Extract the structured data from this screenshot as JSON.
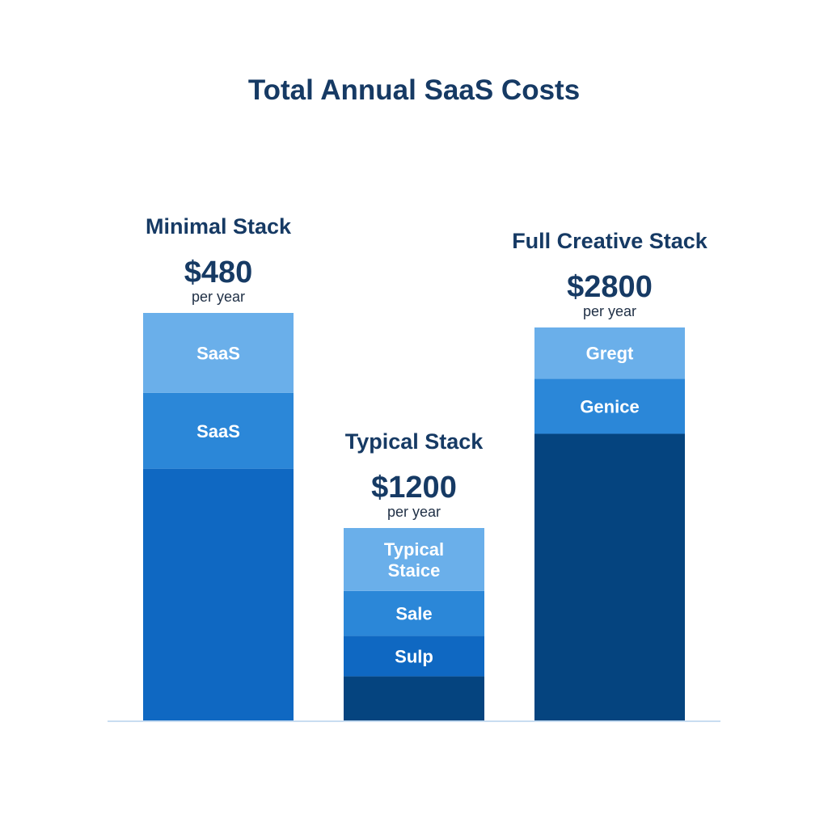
{
  "chart_data": {
    "type": "bar",
    "stacked": true,
    "title": "Total Annual SaaS Costs",
    "unit_label": "per year",
    "grid": false,
    "legend": "none",
    "bars": [
      {
        "name": "Minimal Stack",
        "total_label": "$480",
        "value": 480,
        "segments": [
          {
            "label": "",
            "share": 0.6,
            "color": "#0f68c2"
          },
          {
            "label": "SaaS",
            "share": 0.18,
            "color": "#2b87d8"
          },
          {
            "label": "SaaS",
            "share": 0.19,
            "color": "#6aafea"
          }
        ]
      },
      {
        "name": "Typical Stack",
        "total_label": "$1200",
        "value": 1200,
        "segments": [
          {
            "label": "",
            "share": 0.2,
            "color": "#05447f"
          },
          {
            "label": "Sulp",
            "share": 0.18,
            "color": "#0f68c2"
          },
          {
            "label": "Sale",
            "share": 0.2,
            "color": "#2b87d8"
          },
          {
            "label": "Typical Staice",
            "share": 0.28,
            "color": "#6aafea"
          }
        ]
      },
      {
        "name": "Full Creative Stack",
        "total_label": "$2800",
        "value": 2800,
        "segments": [
          {
            "label": "",
            "share": 0.73,
            "color": "#05447f"
          },
          {
            "label": "Genice",
            "share": 0.14,
            "color": "#2b87d8"
          },
          {
            "label": "Gregt",
            "share": 0.13,
            "color": "#6aafea"
          }
        ]
      }
    ],
    "colors": {
      "text_dark": "#163a64",
      "baseline": "#c8ddf1"
    }
  }
}
